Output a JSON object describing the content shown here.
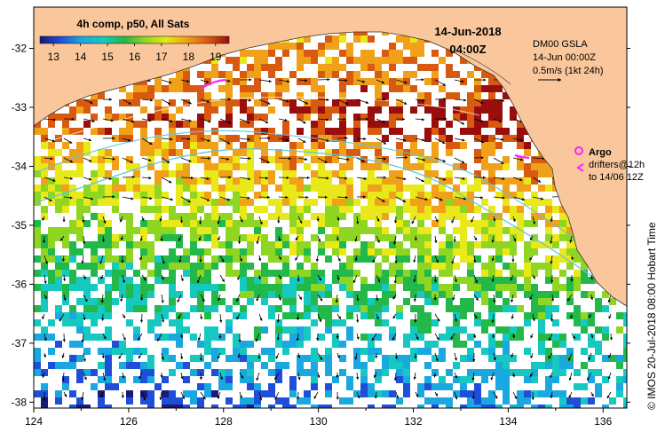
{
  "map": {
    "region_lon": [
      124,
      136.5
    ],
    "region_lat": [
      -38.1,
      -31.3
    ],
    "x_ticks": [
      "124",
      "126",
      "128",
      "130",
      "132",
      "134",
      "136"
    ],
    "y_ticks": [
      "-32",
      "-33",
      "-34",
      "-35",
      "-36",
      "-37",
      "-38"
    ],
    "land_color": "#f9c79b",
    "coast_color": "#333333",
    "contour_color": "#5fc8d8",
    "background": "#ffffff"
  },
  "colorbar": {
    "title": "4h comp, p50, All Sats",
    "ticks": [
      "13",
      "14",
      "15",
      "16",
      "17",
      "18",
      "19"
    ],
    "min": 12.5,
    "max": 19.5,
    "colors": [
      "#1a1a7a",
      "#1f4fd8",
      "#19a8e0",
      "#16c9c0",
      "#22b84a",
      "#8fd622",
      "#e8e81a",
      "#f0a019",
      "#d85a10",
      "#9a0d0d"
    ]
  },
  "time_label": {
    "date": "14-Jun-2018",
    "time": "04:00Z"
  },
  "gsla": {
    "title": "DM00 GSLA",
    "time": "14-Jun 00:00Z",
    "scale": "0.5m/s (1kt 24h)"
  },
  "legend": {
    "argo": "Argo",
    "drifters": "drifters@12h",
    "drifters_to": "to 14/06 12Z"
  },
  "credit": "© IMOS 20-Jul-2018 08:00 Hobart Time"
}
